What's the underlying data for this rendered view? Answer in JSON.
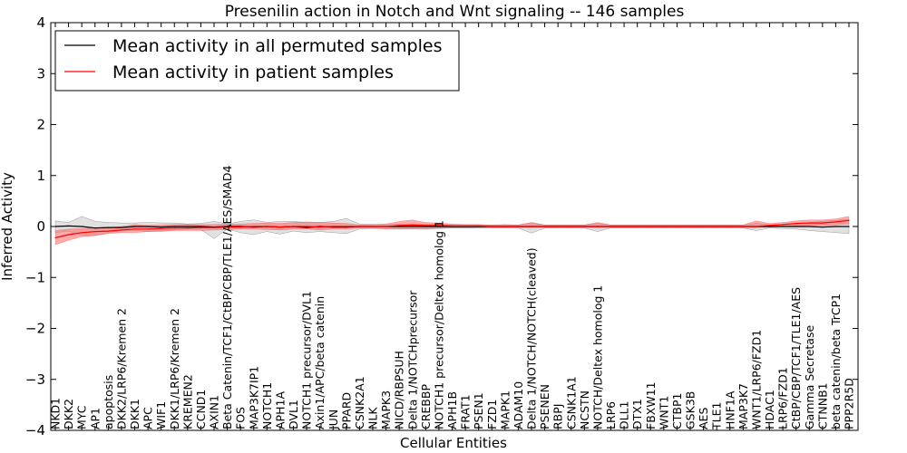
{
  "chart_data": {
    "type": "line",
    "title": "Presenilin action in Notch and Wnt signaling -- 146 samples",
    "xlabel": "Cellular Entities",
    "ylabel": "Inferred Activity",
    "ylim": [
      -4,
      4
    ],
    "yticks": [
      -4,
      -3,
      -2,
      -1,
      0,
      1,
      2,
      3,
      4
    ],
    "ytick_labels": [
      "−4",
      "−3",
      "−2",
      "−1",
      "0",
      "1",
      "2",
      "3",
      "4"
    ],
    "legend_position": "top-left",
    "categories": [
      "NKD1",
      "DKK2",
      "MYC",
      "AP1",
      "apoptosis",
      "DKK2/LRP6/Kremen 2",
      "DKK1",
      "APC",
      "WIF1",
      "DKK1/LRP6/Kremen 2",
      "KREMEN2",
      "CCND1",
      "AXIN1",
      "Beta Catenin/TCF1/CtBP/CBP/TLE1/AES/SMAD4",
      "FOS",
      "MAP3K7IP1",
      "NOTCH1",
      "APH1A",
      "DVL1",
      "NOTCH1 precursor/DVL1",
      "Axin1/APC/beta catenin",
      "JUN",
      "PPARD",
      "CSNK2A1",
      "NLK",
      "MAPK3",
      "NICD/RBPSUH",
      "Delta 1/NOTCHprecursor",
      "CREBBP",
      "NOTCH1 precursor/Deltex homolog 1",
      "APH1B",
      "FRAT1",
      "PSEN1",
      "FZD1",
      "MAPK1",
      "ADAM10",
      "Delta 1/NOTCH/NOTCH(cleaved)",
      "PSENEN",
      "RBPJ",
      "CSNK1A1",
      "NCSTN",
      "NOTCH/Deltex homolog 1",
      "LRP6",
      "DLL1",
      "DTX1",
      "FBXW11",
      "WNT1",
      "CTBP1",
      "GSK3B",
      "AES",
      "TLE1",
      "HNF1A",
      "MAP3K7",
      "WNT1/LRP6/FZD1",
      "HDAC1",
      "LRP6/FZD1",
      "CtBP/CBP/TCF1/TLE1/AES",
      "Gamma Secretase",
      "CTNNB1",
      "beta catenin/beta TrCP1",
      "PPP2R5D"
    ],
    "series": [
      {
        "name": "Mean activity in all permuted samples",
        "color": "#000000",
        "band_color": "#bdbdbd",
        "values": [
          0.0,
          0.01,
          0.0,
          -0.03,
          -0.02,
          -0.02,
          0.0,
          0.0,
          -0.01,
          0.0,
          0.0,
          0.0,
          -0.01,
          0.0,
          0.0,
          -0.01,
          0.0,
          -0.01,
          0.0,
          -0.02,
          0.0,
          -0.01,
          -0.01,
          0.0,
          0.0,
          0.0,
          0.0,
          0.0,
          0.0,
          0.0,
          0.0,
          0.0,
          0.0,
          0.0,
          0.0,
          0.0,
          0.0,
          0.0,
          0.0,
          0.0,
          0.0,
          0.0,
          0.0,
          0.0,
          0.0,
          0.0,
          0.0,
          0.0,
          0.0,
          0.0,
          0.0,
          0.0,
          0.0,
          0.0,
          0.0,
          0.0,
          0.0,
          0.0,
          -0.01,
          0.0,
          0.0
        ],
        "lower": [
          -0.12,
          -0.09,
          -0.18,
          -0.17,
          -0.12,
          -0.08,
          -0.08,
          -0.1,
          -0.08,
          -0.07,
          -0.05,
          -0.06,
          -0.24,
          -0.05,
          -0.12,
          -0.16,
          -0.1,
          -0.15,
          -0.09,
          -0.12,
          -0.1,
          -0.12,
          -0.14,
          -0.05,
          -0.04,
          -0.04,
          -0.05,
          -0.05,
          -0.05,
          -0.04,
          -0.03,
          -0.03,
          -0.03,
          -0.03,
          -0.03,
          -0.03,
          -0.13,
          -0.03,
          -0.03,
          -0.03,
          -0.03,
          -0.1,
          -0.03,
          -0.03,
          -0.03,
          -0.03,
          -0.03,
          -0.03,
          -0.03,
          -0.03,
          -0.03,
          -0.03,
          -0.03,
          -0.08,
          -0.03,
          -0.04,
          -0.05,
          -0.08,
          -0.1,
          -0.12,
          -0.14
        ],
        "upper": [
          0.11,
          0.08,
          0.2,
          0.1,
          0.08,
          0.07,
          0.07,
          0.08,
          0.07,
          0.07,
          0.05,
          0.06,
          0.1,
          0.05,
          0.1,
          0.13,
          0.08,
          0.1,
          0.1,
          0.08,
          0.08,
          0.1,
          0.16,
          0.05,
          0.04,
          0.04,
          0.05,
          0.05,
          0.05,
          0.04,
          0.03,
          0.03,
          0.03,
          0.03,
          0.03,
          0.03,
          0.07,
          0.03,
          0.03,
          0.03,
          0.03,
          0.06,
          0.03,
          0.03,
          0.03,
          0.03,
          0.03,
          0.03,
          0.03,
          0.03,
          0.03,
          0.03,
          0.03,
          0.06,
          0.03,
          0.04,
          0.05,
          0.08,
          0.1,
          0.12,
          0.14
        ]
      },
      {
        "name": "Mean activity in patient samples",
        "color": "#ff0000",
        "band_color": "#ff6666",
        "values": [
          -0.22,
          -0.16,
          -0.12,
          -0.1,
          -0.09,
          -0.07,
          -0.05,
          -0.05,
          -0.04,
          -0.03,
          -0.03,
          -0.02,
          -0.02,
          -0.01,
          -0.01,
          0.0,
          0.0,
          -0.01,
          0.0,
          0.0,
          -0.01,
          0.0,
          0.0,
          0.0,
          0.0,
          0.0,
          0.02,
          0.03,
          0.02,
          0.02,
          0.01,
          0.01,
          0.01,
          0.0,
          0.0,
          0.0,
          0.0,
          0.0,
          0.0,
          0.0,
          0.0,
          0.0,
          0.0,
          0.0,
          0.0,
          0.0,
          0.0,
          0.0,
          0.0,
          0.0,
          0.0,
          0.0,
          0.0,
          0.0,
          0.02,
          0.04,
          0.06,
          0.07,
          0.07,
          0.09,
          0.12
        ],
        "lower": [
          -0.36,
          -0.27,
          -0.2,
          -0.18,
          -0.14,
          -0.12,
          -0.12,
          -0.1,
          -0.1,
          -0.08,
          -0.08,
          -0.08,
          -0.07,
          -0.06,
          -0.05,
          -0.05,
          -0.06,
          -0.07,
          -0.05,
          -0.05,
          -0.07,
          -0.05,
          -0.05,
          -0.03,
          -0.03,
          -0.05,
          -0.04,
          -0.04,
          -0.04,
          -0.03,
          -0.03,
          -0.03,
          -0.02,
          -0.02,
          -0.02,
          -0.02,
          -0.02,
          -0.02,
          -0.02,
          -0.02,
          -0.02,
          -0.02,
          -0.02,
          -0.02,
          -0.02,
          -0.02,
          -0.02,
          -0.02,
          -0.02,
          -0.02,
          -0.02,
          -0.02,
          -0.02,
          -0.02,
          -0.01,
          0.0,
          0.01,
          0.02,
          0.02,
          0.03,
          0.05
        ],
        "upper": [
          -0.08,
          -0.05,
          -0.04,
          -0.02,
          -0.02,
          0.0,
          0.04,
          0.02,
          0.03,
          0.04,
          0.05,
          0.04,
          0.04,
          0.05,
          0.05,
          0.06,
          0.07,
          0.06,
          0.08,
          0.09,
          0.08,
          0.07,
          0.06,
          0.03,
          0.04,
          0.05,
          0.1,
          0.13,
          0.08,
          0.07,
          0.05,
          0.04,
          0.04,
          0.03,
          0.04,
          0.03,
          0.08,
          0.03,
          0.03,
          0.03,
          0.03,
          0.08,
          0.03,
          0.03,
          0.03,
          0.03,
          0.03,
          0.03,
          0.03,
          0.03,
          0.03,
          0.03,
          0.03,
          0.11,
          0.06,
          0.08,
          0.11,
          0.13,
          0.13,
          0.15,
          0.2
        ]
      }
    ]
  }
}
